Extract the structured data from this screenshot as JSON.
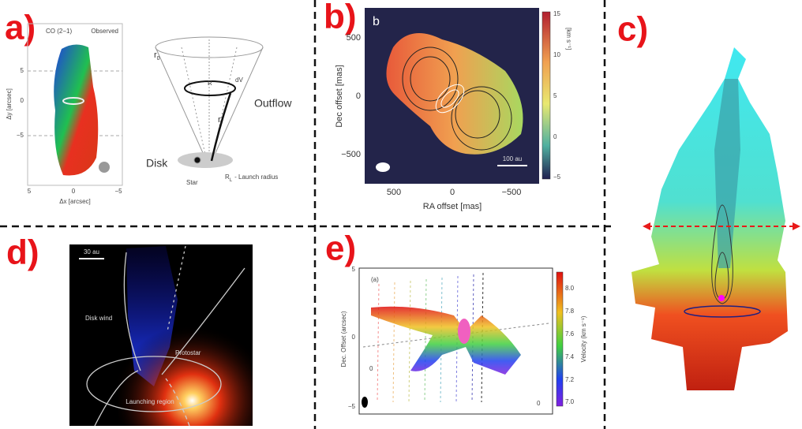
{
  "panels": {
    "a": {
      "label": "a)",
      "line": "CO (2−1)",
      "mode": "Observed",
      "y_title": "Δy [arcsec]",
      "x_title": "Δx [arcsec]",
      "yticks": [
        "5",
        "0",
        "−5"
      ],
      "xticks": [
        "5",
        "0",
        "−5"
      ],
      "diagram": {
        "r0": "r",
        "r0_sub": "0",
        "R": "R",
        "dV": "dV",
        "r": "r",
        "outflow": "Outflow",
        "disk": "Disk",
        "star": "Star",
        "launch": "R",
        "launch_sub": "L",
        "launch_text": "- Launch radius"
      }
    },
    "b": {
      "label": "b)",
      "inset": "b",
      "y_title": "Dec offset [mas]",
      "x_title": "RA offset [mas]",
      "yticks": [
        "500",
        "0",
        "−500"
      ],
      "xticks": [
        "500",
        "0",
        "−500"
      ],
      "cbar_ticks": [
        "15",
        "10",
        "5",
        "0",
        "−5"
      ],
      "cbar_title": "[km s⁻¹]",
      "scale": "100 au"
    },
    "c": {
      "label": "c)"
    },
    "d": {
      "label": "d)",
      "scale": "30 au",
      "wind": "Disk wind",
      "protostar": "Protostar",
      "region": "Launching region"
    },
    "e": {
      "label": "e)",
      "inset": "(a)",
      "y_title": "Dec. Offset (arcsec)",
      "yticks": [
        "5",
        "0",
        "−5"
      ],
      "cbar_ticks": [
        "8.0",
        "7.8",
        "7.6",
        "7.4",
        "7.2",
        "7.0"
      ],
      "cbar_title": "Velocity (km s⁻¹)",
      "mark_left": "0",
      "mark_right": "0"
    }
  }
}
